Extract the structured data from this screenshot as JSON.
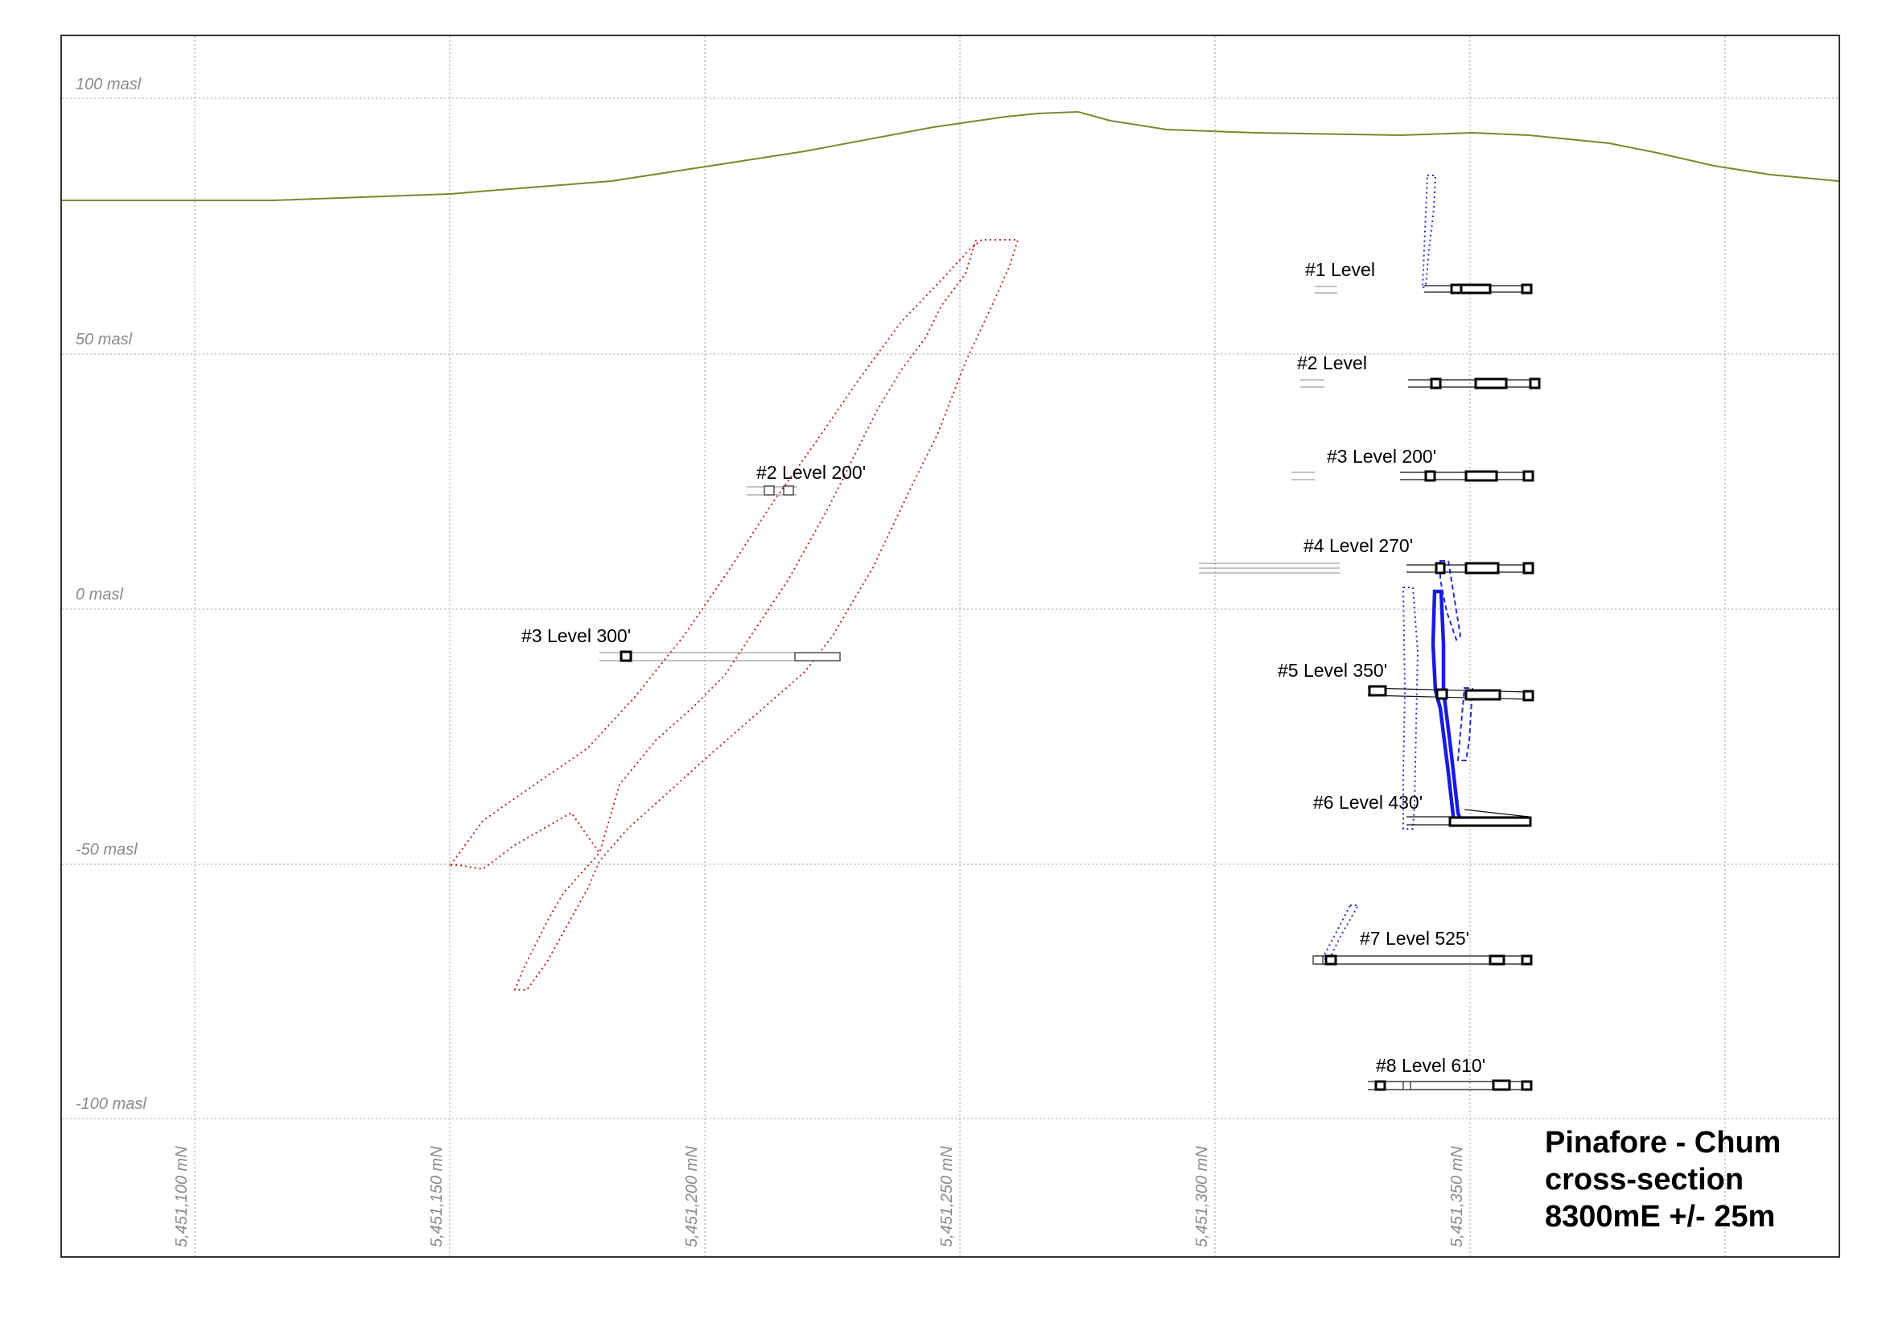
{
  "title_lines": [
    "Pinafore - Chum",
    "cross-section",
    "8300mE +/- 25m"
  ],
  "elevation_labels": [
    "100 masl",
    "50 masl",
    "0 masl",
    "-50 masl",
    "-100 masl"
  ],
  "northing_labels": [
    "5,451,100 mN",
    "5,451,150 mN",
    "5,451,200 mN",
    "5,451,250 mN",
    "5,451,300 mN",
    "5,451,350 mN"
  ],
  "level_labels": {
    "l1": "#1 Level",
    "l2": "#2 Level",
    "l3": "#3 Level 200'",
    "l4": "#4 Level 270'",
    "l5": "#5 Level 350'",
    "l6": "#6 Level 430'",
    "l7": "#7 Level 525'",
    "l8": "#8 Level 610'",
    "w2": "#2 Level 200'",
    "w3": "#3 Level 300'"
  },
  "colors": {
    "topography": "#7a8a2a",
    "vein_west": "#c0282a",
    "vein_east": "#2a2acf",
    "stope": "#1a1ae6"
  }
}
